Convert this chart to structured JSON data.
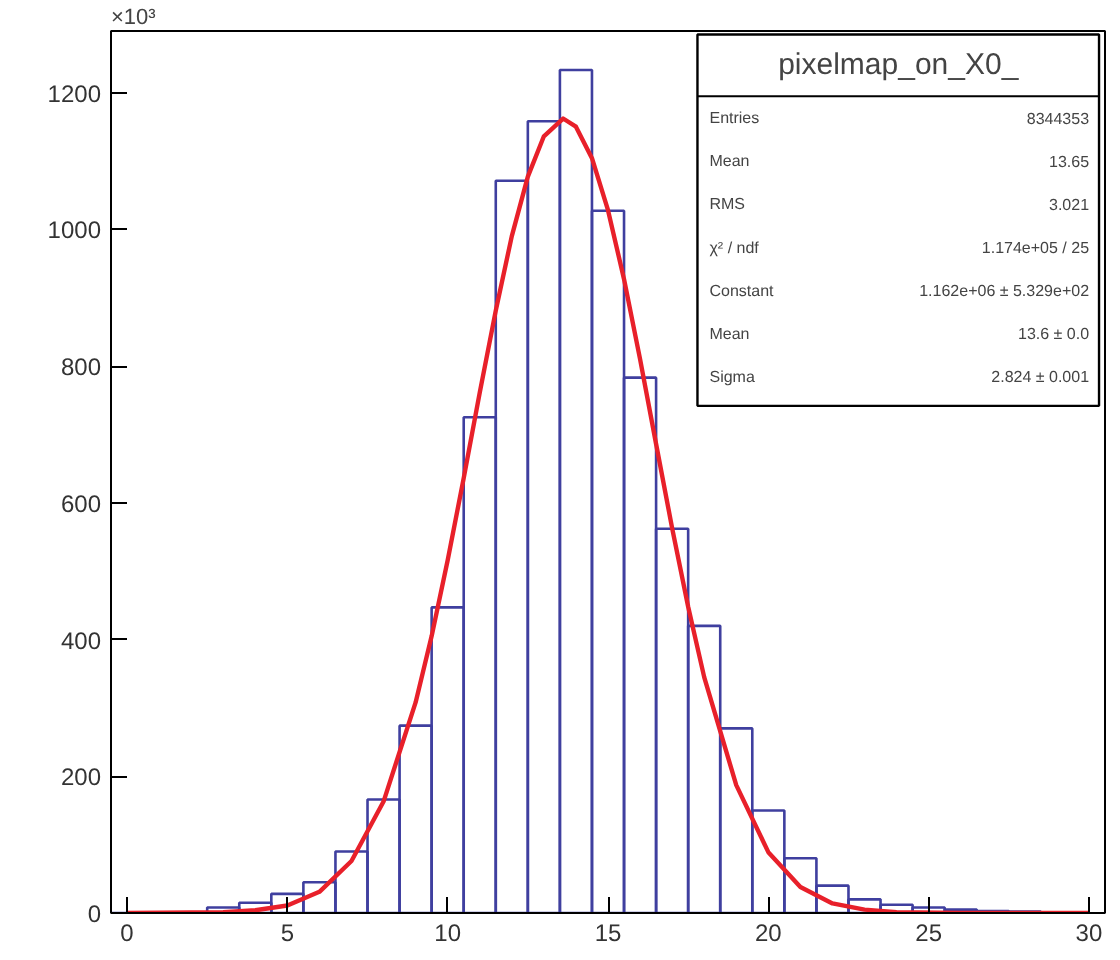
{
  "chart_data": {
    "type": "histogram",
    "xlim": [
      -0.5,
      30.5
    ],
    "ylim": [
      0,
      1290
    ],
    "xticks": [
      0,
      5,
      10,
      15,
      20,
      25,
      30
    ],
    "yticks": [
      0,
      200,
      400,
      600,
      800,
      1000,
      1200
    ],
    "annotations": [
      "×10³",
      "pixelmap_on_X0_",
      "Entries\t8344353",
      "Mean\t13.65",
      "RMS\t3.021",
      "χ² / ndf\t1.174e+05 / 25",
      "Constant\t1.162e+06 ± 5.329e+02",
      "Mean\t13.6 ± 0.0",
      "Sigma\t2.824 ± 0.001"
    ],
    "series": [
      {
        "color": "#3f3f9f",
        "bins": [
          -0.5,
          0.5,
          1.5,
          2.5,
          3.5,
          4.5,
          5.5,
          6.5,
          7.5,
          8.5,
          9.5,
          10.5,
          11.5,
          12.5,
          13.5,
          14.5,
          15.5,
          16.5,
          17.5,
          18.5,
          19.5,
          20.5,
          21.5,
          22.5,
          23.5,
          24.5,
          25.5,
          26.5,
          27.5,
          28.5,
          29.5
        ],
        "values": [
          0,
          1,
          null,
          8,
          15,
          28,
          45,
          90,
          166,
          274,
          447,
          725,
          1071,
          1158,
          1233,
          1027,
          783,
          562,
          420,
          270,
          150,
          80,
          40,
          20,
          12,
          8,
          5,
          3,
          2,
          1
        ]
      },
      {
        "type": "line",
        "color": "#e8202a",
        "x": [
          0,
          3,
          4,
          5,
          6,
          7,
          8,
          9,
          9.5,
          10,
          10.5,
          11,
          11.5,
          12,
          12.5,
          13,
          13.6,
          14,
          14.5,
          15,
          15.5,
          16,
          16.5,
          17,
          17.5,
          18,
          19,
          20,
          21,
          22,
          23,
          24,
          26,
          30
        ],
        "values": [
          0,
          1,
          4,
          11,
          31,
          76,
          163,
          308,
          405,
          516,
          636,
          761,
          881,
          990,
          1077,
          1136,
          1162,
          1150,
          1104,
          1028,
          927,
          810,
          686,
          563,
          448,
          345,
          187,
          89,
          38,
          14,
          5,
          1,
          0,
          0
        ]
      }
    ]
  }
}
